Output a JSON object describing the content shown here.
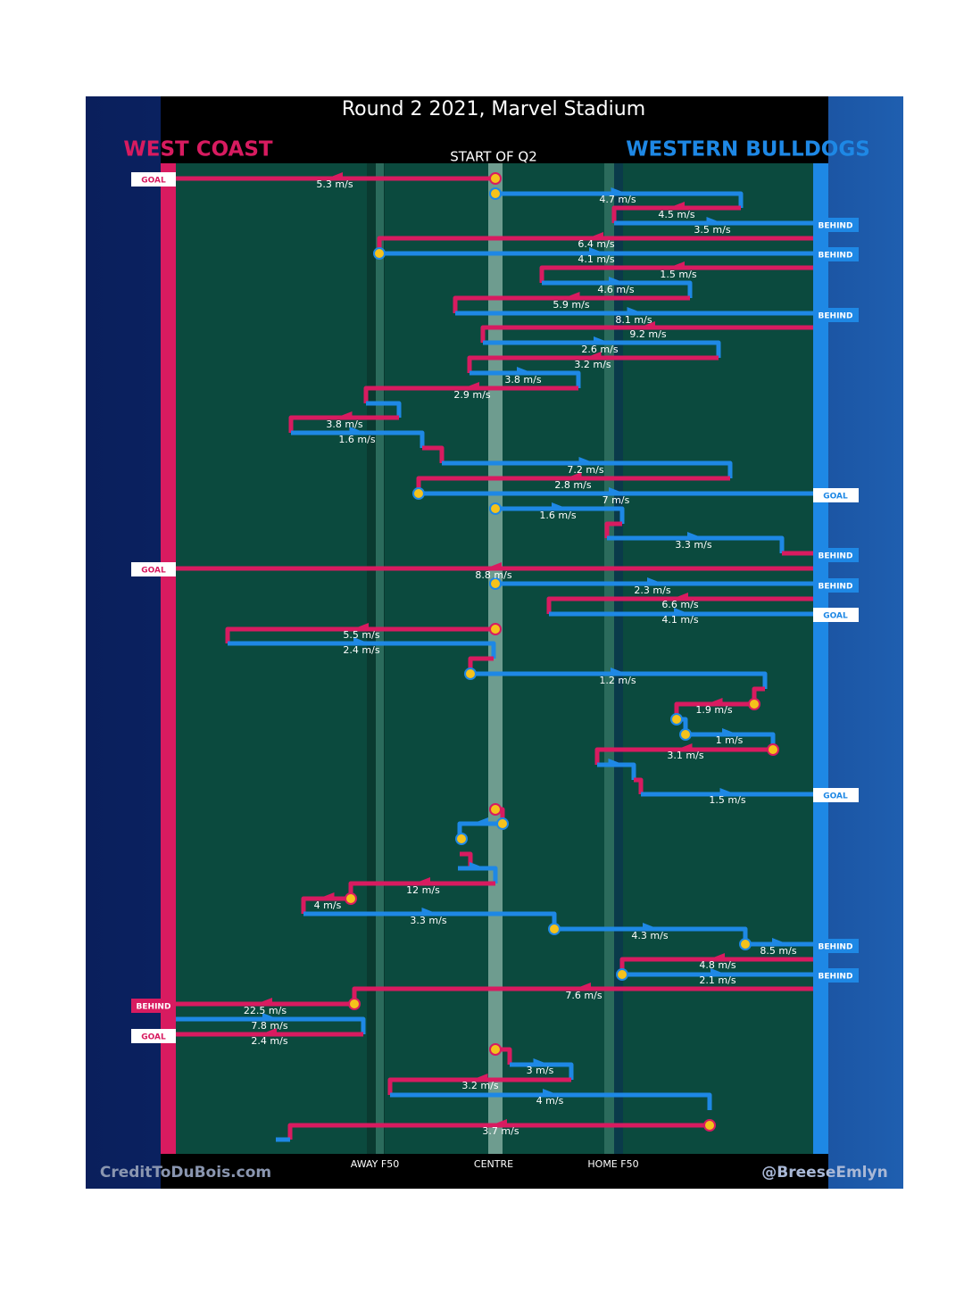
{
  "title": "Round 2 2021, Marvel Stadium",
  "teams": {
    "left": "WEST COAST",
    "right": "WESTERN BULLDOGS"
  },
  "period": "START OF Q2",
  "speeds": [
    "5.3 m/s",
    "4.7 m/s",
    "4.5 m/s",
    "3.5 m/s",
    "6.4 m/s",
    "4.1 m/s",
    "1.5 m/s",
    "4.6 m/s",
    "5.9 m/s",
    "8.1 m/s",
    "9.2 m/s",
    "2.6 m/s",
    "3.2 m/s",
    "3.8 m/s",
    "2.9 m/s",
    "3.8 m/s",
    "1.6 m/s",
    "7.2 m/s",
    "2.8 m/s",
    "7 m/s",
    "1.6 m/s",
    "3.3 m/s",
    "8.8 m/s",
    "2.3 m/s",
    "6.6 m/s",
    "4.1 m/s",
    "5.5 m/s",
    "2.4 m/s",
    "1.2 m/s",
    "1.9 m/s",
    "1 m/s",
    "3.1 m/s",
    "1.5 m/s",
    "12 m/s",
    "4 m/s",
    "3.3 m/s",
    "4.3 m/s",
    "8.5 m/s",
    "4.8 m/s",
    "2.1 m/s",
    "7.6 m/s",
    "22.5 m/s",
    "7.8 m/s",
    "2.4 m/s",
    "3 m/s",
    "3.2 m/s",
    "4 m/s",
    "3.7 m/s"
  ],
  "outcomes": {
    "left": [
      "GOAL",
      "GOAL",
      "BEHIND",
      "GOAL"
    ],
    "right": [
      "BEHIND",
      "BEHIND",
      "BEHIND",
      "GOAL",
      "BEHIND",
      "BEHIND",
      "GOAL",
      "GOAL",
      "BEHIND",
      "BEHIND"
    ]
  },
  "axis": [
    "AWAY F50",
    "CENTRE",
    "HOME F50"
  ],
  "credits": [
    "CreditToDuBois.com",
    "@BreeseEmlyn"
  ]
}
